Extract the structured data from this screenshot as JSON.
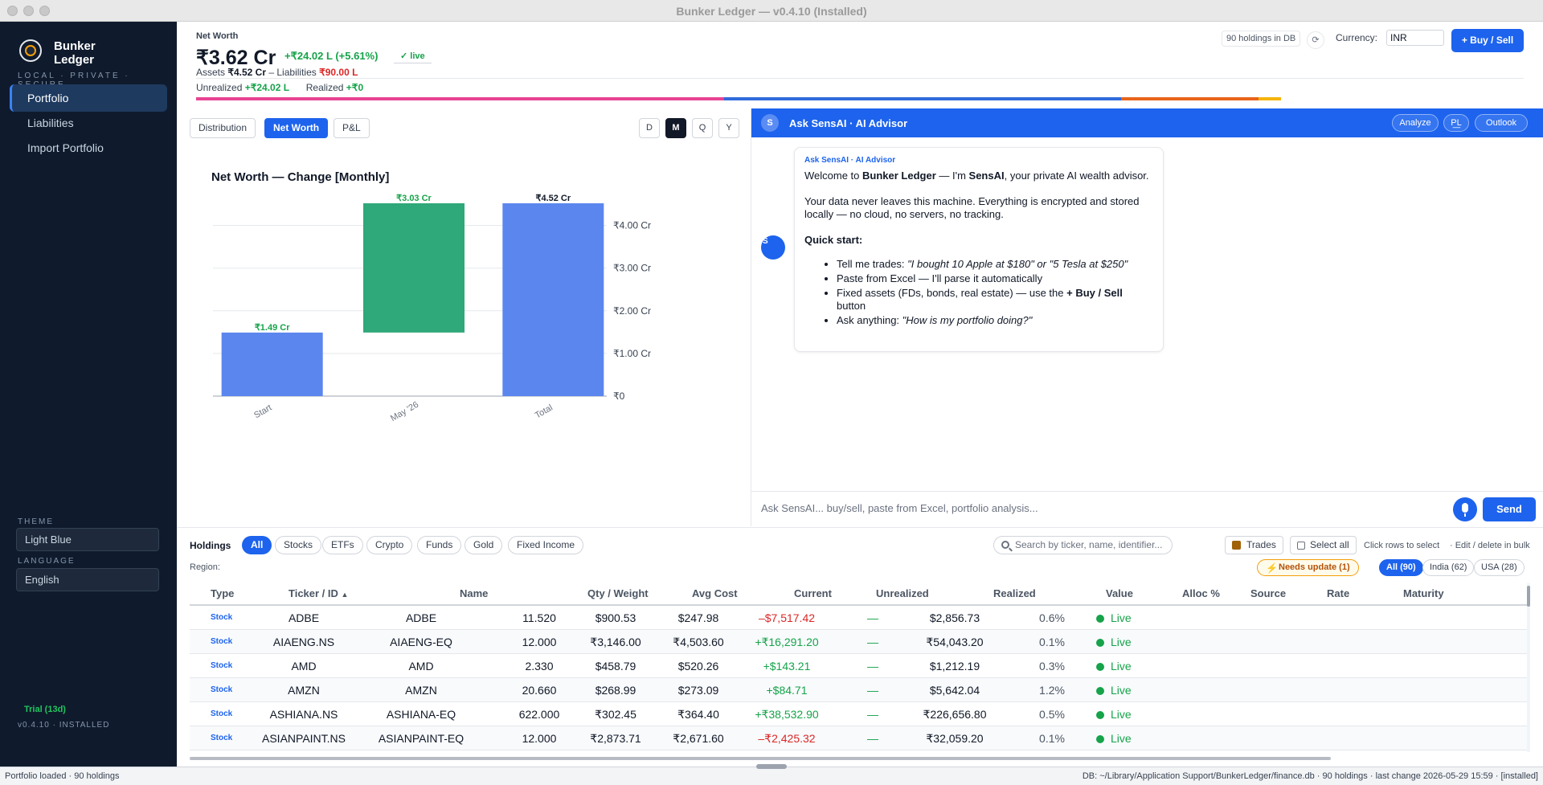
{
  "window": {
    "title": "Bunker Ledger — v0.4.10 (Installed)"
  },
  "sidebar": {
    "brand_line1": "Bunker",
    "brand_line2": "Ledger",
    "tagline": "LOCAL · PRIVATE · SECURE",
    "items": [
      {
        "label": "Portfolio",
        "active": true
      },
      {
        "label": "Liabilities"
      },
      {
        "label": "Import Portfolio"
      }
    ],
    "theme_label": "THEME",
    "theme_value": "Light Blue",
    "language_label": "LANGUAGE",
    "language_value": "English",
    "trial": "Trial (13d)",
    "version": "v0.4.10 · INSTALLED"
  },
  "header": {
    "label": "Net Worth",
    "value": "₹3.62 Cr",
    "change": "+₹24.02 L (+5.61%)",
    "live": "✓ live",
    "assets_label": "Assets",
    "assets_value": "₹4.52 Cr",
    "liabilities_label": "– Liabilities",
    "liabilities_value": "₹90.00 L",
    "unrealized_label": "Unrealized",
    "unrealized_value": "+₹24.02 L",
    "realized_label": "Realized",
    "realized_value": "+₹0",
    "holdings_db": "90 holdings in DB",
    "refresh_icon": "⟳",
    "currency_label": "Currency:",
    "currency_value": "INR",
    "buy_sell": "+ Buy / Sell",
    "allocation_colors": [
      "#e84393",
      "#2f6bdc",
      "#e8641a",
      "#f5b40b"
    ],
    "allocation_shares": [
      0.398,
      0.299,
      0.103,
      0.017
    ]
  },
  "chart_view": {
    "tabs": [
      "Distribution",
      "Net Worth",
      "P&L"
    ],
    "active_tab": "Net Worth",
    "periods": [
      "D",
      "M",
      "Q",
      "Y"
    ],
    "active_period": "M"
  },
  "chart_data": {
    "type": "bar",
    "subtype": "waterfall",
    "title": "Net Worth — Change  [Monthly]",
    "categories": [
      "Start",
      "May '26",
      "Total"
    ],
    "bars": [
      {
        "label": "Start",
        "base": 0,
        "value": 1.49,
        "text": "₹1.49 Cr",
        "color": "#5b86ee",
        "text_color": "#16a34a"
      },
      {
        "label": "May '26",
        "base": 1.49,
        "value": 3.03,
        "text": "₹3.03 Cr",
        "color": "#2fa87a",
        "text_color": "#16a34a"
      },
      {
        "label": "Total",
        "base": 0,
        "value": 4.52,
        "text": "₹4.52 Cr",
        "color": "#5b86ee",
        "text_color": "#111827"
      }
    ],
    "y_ticks": [
      0,
      1,
      2,
      3,
      4
    ],
    "y_tick_labels": [
      "₹0",
      "₹1.00 Cr",
      "₹2.00 Cr",
      "₹3.00 Cr",
      "₹4.00 Cr"
    ],
    "ylim": [
      0,
      4.52
    ],
    "y_axis_position": "right",
    "grid": true
  },
  "advisor": {
    "avatar": "S",
    "title": "Ask SensAI · AI Advisor",
    "buttons": [
      "Analyze",
      "P͟L",
      "Outlook"
    ],
    "bot_initial": "S",
    "message": {
      "from": "Ask SensAI · AI Advisor",
      "welcome_pre": "Welcome to ",
      "welcome_app": "Bunker Ledger",
      "welcome_mid": " — I'm ",
      "welcome_name": "SensAI",
      "welcome_post": ", your private AI wealth advisor.",
      "privacy": "Your data never leaves this machine. Everything is encrypted and stored locally — no cloud, no servers, no tracking.",
      "quick_start": "Quick start:",
      "tip1_pre": "Tell me trades: ",
      "tip1_example": "\"I bought 10 Apple at $180\" or \"5 Tesla at $250\"",
      "tip2": "Paste from Excel — I'll parse it automatically",
      "tip3_pre": "Fixed assets (FDs, bonds, real estate) — use the ",
      "tip3_btn": "+ Buy / Sell",
      "tip3_post": " button",
      "tip4_pre": "Ask anything: ",
      "tip4_example": "\"How is my portfolio doing?\""
    },
    "input_placeholder": "Ask SensAI... buy/sell, paste from Excel, portfolio analysis...",
    "send": "Send"
  },
  "holdings": {
    "title": "Holdings",
    "filters": [
      "All",
      "Stocks",
      "ETFs",
      "Crypto",
      "Funds",
      "Gold",
      "Fixed Income"
    ],
    "active_filter": "All",
    "search_placeholder": "Search by ticker, name, identifier...",
    "trades": "Trades",
    "select_all": "Select all",
    "hint1": "Click rows to select",
    "hint2": "· Edit / delete in bulk",
    "region_label": "Region:",
    "needs_update": "Needs update (1)",
    "regions": [
      "All (90)",
      "India (62)",
      "USA (28)"
    ],
    "columns": [
      "Type",
      "Ticker / ID",
      "Name",
      "Qty / Weight",
      "Avg Cost",
      "Current",
      "Unrealized",
      "Realized",
      "Value",
      "Alloc %",
      "Source",
      "Rate",
      "Maturity"
    ],
    "sort_indicator": "▲",
    "rows": [
      {
        "type": "Stock",
        "ticker": "ADBE",
        "name": "ADBE",
        "qty": "11.520",
        "avg": "$900.53",
        "current": "$247.98",
        "unrealized": "–$7,517.42",
        "sign": "neg",
        "realized": "—",
        "value": "$2,856.73",
        "alloc": "0.6%",
        "source": "Live"
      },
      {
        "type": "Stock",
        "ticker": "AIAENG.NS",
        "name": "AIAENG-EQ",
        "qty": "12.000",
        "avg": "₹3,146.00",
        "current": "₹4,503.60",
        "unrealized": "+₹16,291.20",
        "sign": "pos",
        "realized": "—",
        "value": "₹54,043.20",
        "alloc": "0.1%",
        "source": "Live"
      },
      {
        "type": "Stock",
        "ticker": "AMD",
        "name": "AMD",
        "qty": "2.330",
        "avg": "$458.79",
        "current": "$520.26",
        "unrealized": "+$143.21",
        "sign": "pos",
        "realized": "—",
        "value": "$1,212.19",
        "alloc": "0.3%",
        "source": "Live"
      },
      {
        "type": "Stock",
        "ticker": "AMZN",
        "name": "AMZN",
        "qty": "20.660",
        "avg": "$268.99",
        "current": "$273.09",
        "unrealized": "+$84.71",
        "sign": "pos",
        "realized": "—",
        "value": "$5,642.04",
        "alloc": "1.2%",
        "source": "Live"
      },
      {
        "type": "Stock",
        "ticker": "ASHIANA.NS",
        "name": "ASHIANA-EQ",
        "qty": "622.000",
        "avg": "₹302.45",
        "current": "₹364.40",
        "unrealized": "+₹38,532.90",
        "sign": "pos",
        "realized": "—",
        "value": "₹226,656.80",
        "alloc": "0.5%",
        "source": "Live"
      },
      {
        "type": "Stock",
        "ticker": "ASIANPAINT.NS",
        "name": "ASIANPAINT-EQ",
        "qty": "12.000",
        "avg": "₹2,873.71",
        "current": "₹2,671.60",
        "unrealized": "–₹2,425.32",
        "sign": "neg",
        "realized": "—",
        "value": "₹32,059.20",
        "alloc": "0.1%",
        "source": "Live"
      }
    ]
  },
  "status": {
    "left": "Portfolio loaded · 90 holdings",
    "right": "DB: ~/Library/Application Support/BunkerLedger/finance.db · 90 holdings · last change 2026-05-29 15:59 · [installed]"
  }
}
